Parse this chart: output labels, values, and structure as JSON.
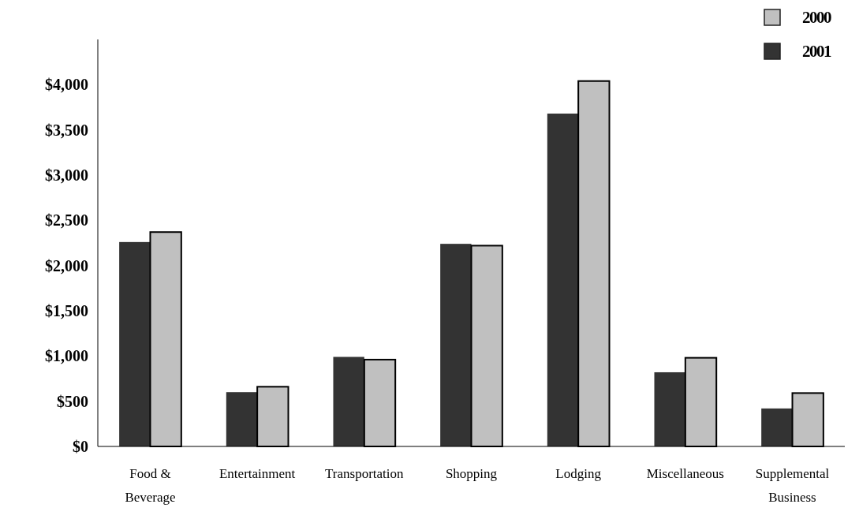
{
  "chart_data": {
    "type": "bar",
    "categories": [
      "Food & Beverage",
      "Entertainment",
      "Transportation",
      "Shopping",
      "Lodging",
      "Miscellaneous",
      "Supplemental Business"
    ],
    "series": [
      {
        "name": "2001",
        "color": "#333333",
        "values": [
          2260,
          600,
          990,
          2240,
          3680,
          820,
          420
        ]
      },
      {
        "name": "2000",
        "color": "#c0c0c0",
        "values": [
          2370,
          660,
          960,
          2220,
          4040,
          980,
          590
        ]
      }
    ],
    "ylim": [
      0,
      4500
    ],
    "yticks": [
      {
        "value": 0,
        "label": "$0"
      },
      {
        "value": 500,
        "label": "$500"
      },
      {
        "value": 1000,
        "label": "$1,000"
      },
      {
        "value": 1500,
        "label": "$1,500"
      },
      {
        "value": 2000,
        "label": "$2,000"
      },
      {
        "value": 2500,
        "label": "$2,500"
      },
      {
        "value": 3000,
        "label": "$3,000"
      },
      {
        "value": 3500,
        "label": "$3,500"
      },
      {
        "value": 4000,
        "label": "$4,000"
      }
    ],
    "grid": false,
    "legend": "top right"
  }
}
